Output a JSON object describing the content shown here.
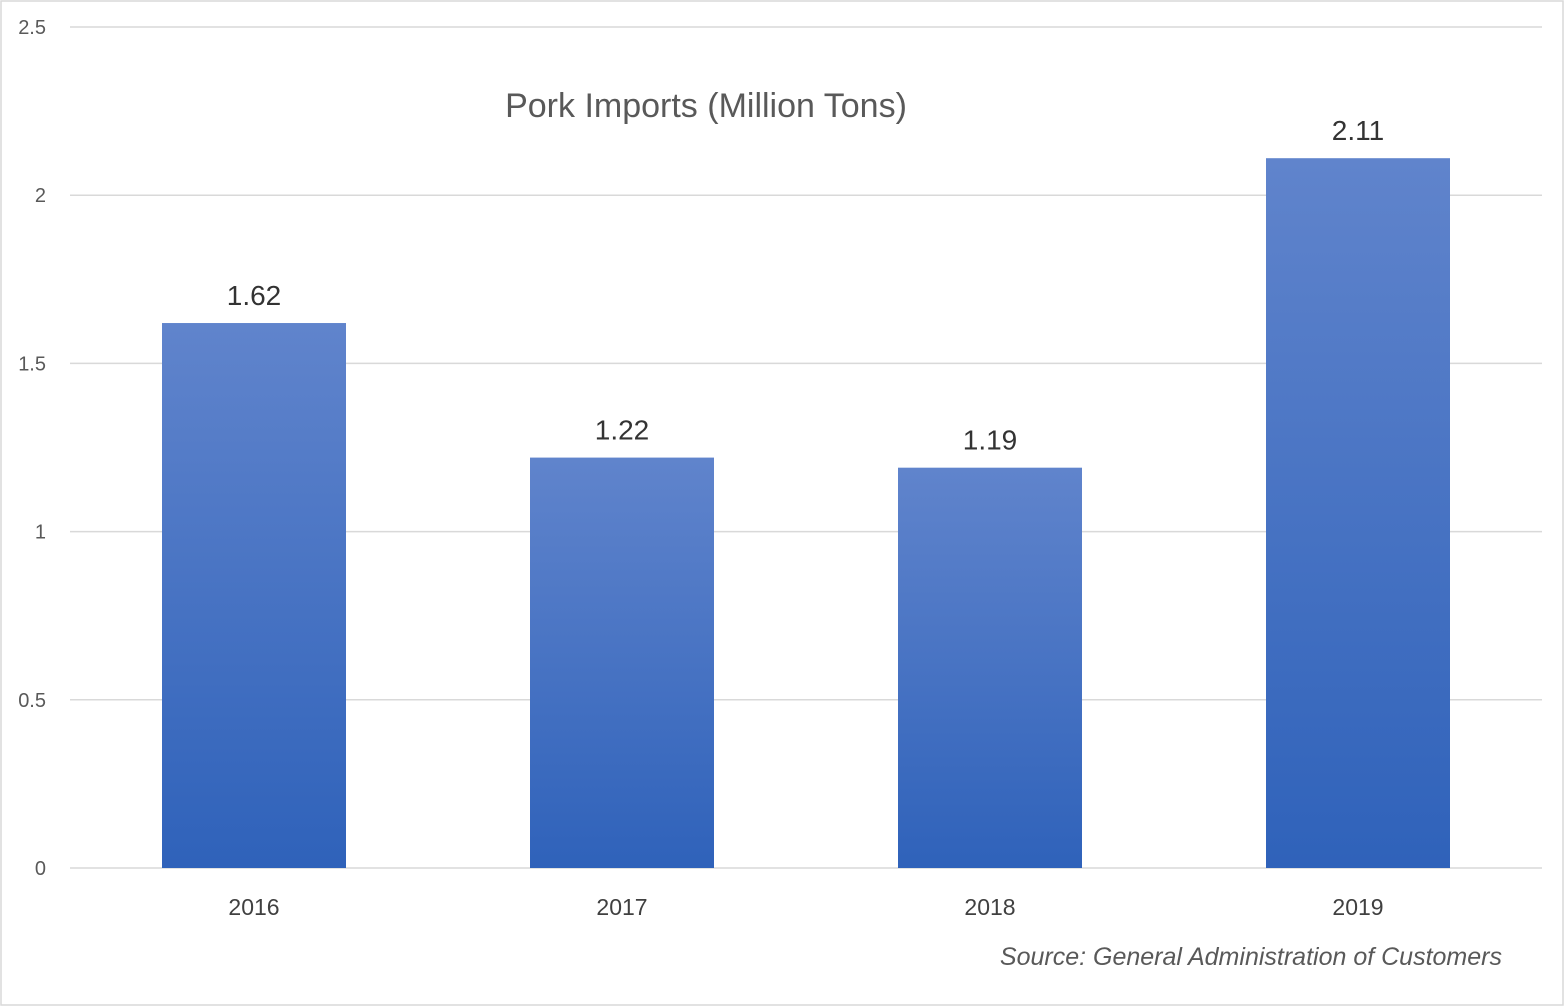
{
  "chart_data": {
    "type": "bar",
    "title": "Pork Imports (Million Tons)",
    "categories": [
      "2016",
      "2017",
      "2018",
      "2019"
    ],
    "values": [
      1.62,
      1.22,
      1.19,
      2.11
    ],
    "data_labels": [
      "1.62",
      "1.22",
      "1.19",
      "2.11"
    ],
    "y_ticks": [
      "0",
      "0.5",
      "1",
      "1.5",
      "2",
      "2.5"
    ],
    "y_tick_values": [
      0,
      0.5,
      1,
      1.5,
      2,
      2.5
    ],
    "ylim": [
      0,
      2.5
    ],
    "xlabel": "",
    "ylabel": "",
    "grid": true,
    "legend": "none",
    "bar_color_top": "#6084cc",
    "bar_color_bottom": "#2f62ba"
  },
  "source_note": "Source: General Administration of Customers"
}
